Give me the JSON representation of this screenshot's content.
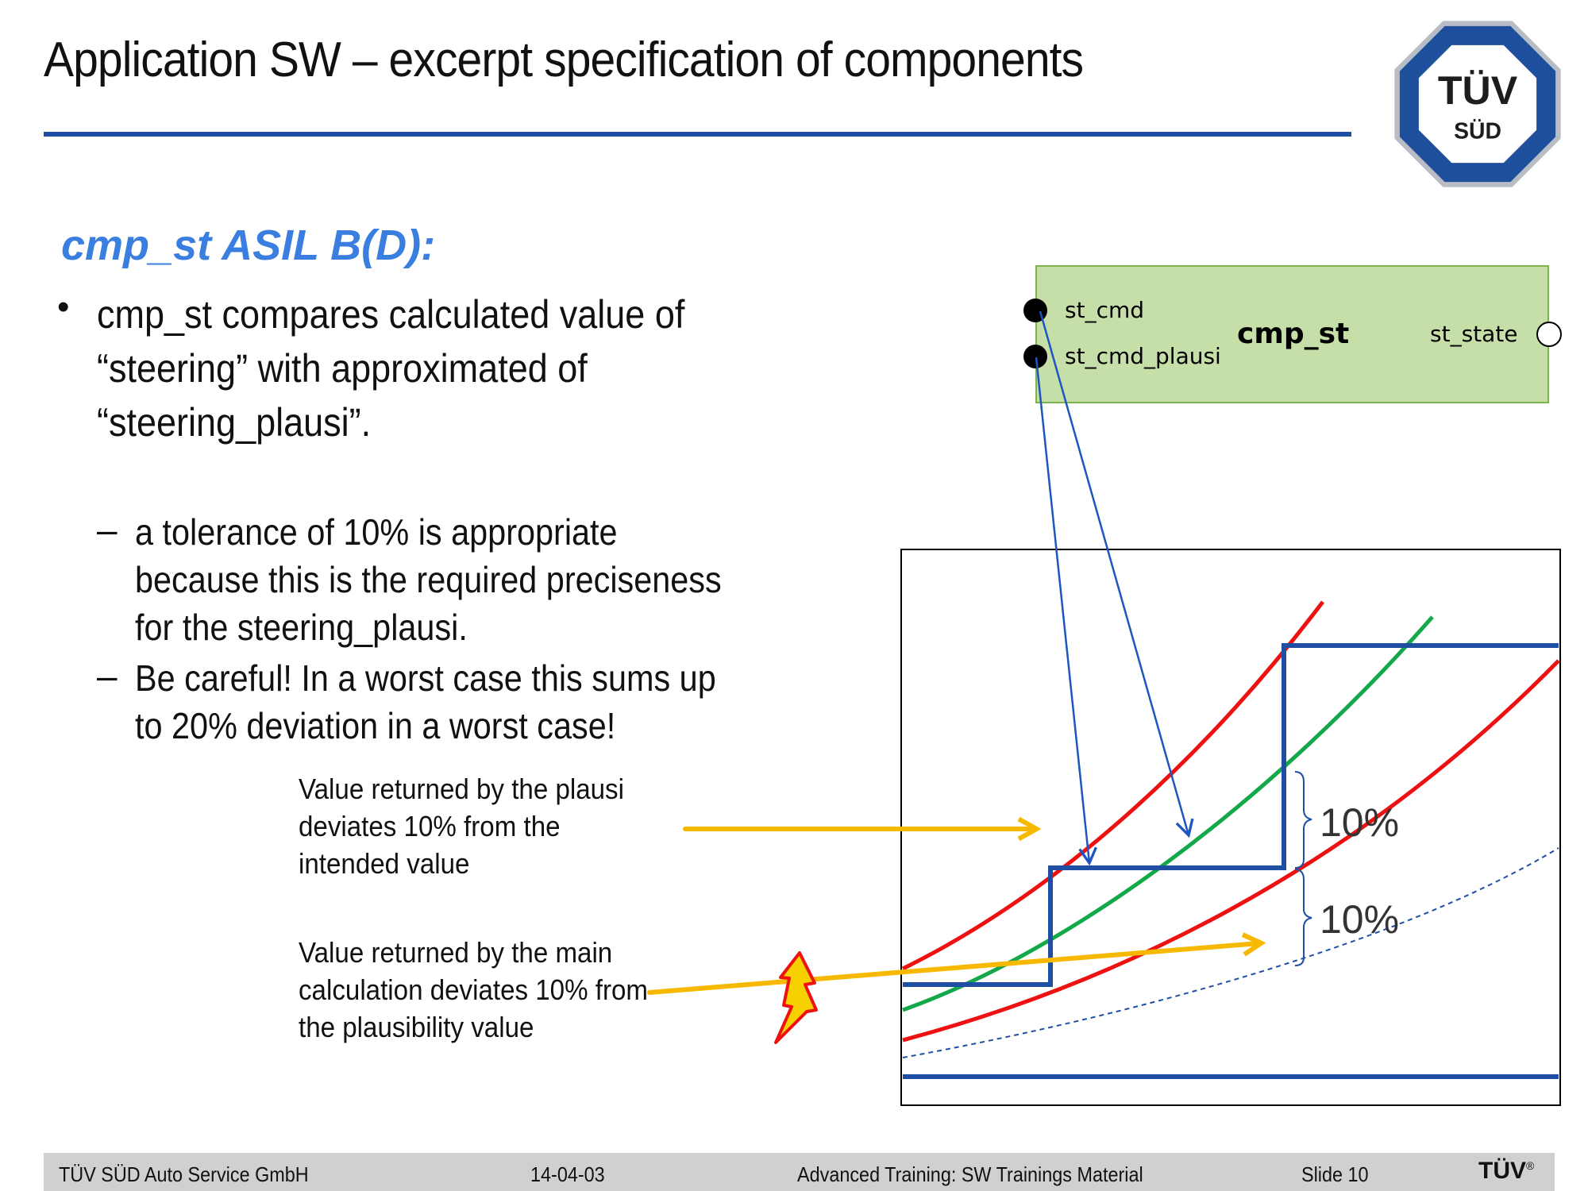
{
  "header": {
    "title": "Application SW – excerpt specification of components",
    "logo_text_top": "TÜV",
    "logo_text_bottom": "SÜD"
  },
  "content": {
    "heading": "cmp_st  ASIL B(D):",
    "bullet_symbol": "•",
    "dash_symbol": "–",
    "bullet_text": "cmp_st compares calculated value of “steering” with approximated of “steering_plausi”.",
    "sub_bullets": [
      "a tolerance of 10% is appropriate because this is the required preciseness for the steering_plausi.",
      "Be careful! In a worst case this sums up to 20% deviation in a worst case!"
    ],
    "callout_plausi": "Value returned by the plausi deviates 10% from the intended value",
    "callout_main": "Value returned by the main calculation deviates 10% from the plausibility value"
  },
  "component": {
    "name": "cmp_st",
    "input_1": "st_cmd",
    "input_2": "st_cmd_plausi",
    "output": "st_state",
    "fill_color": "#c6dfa8",
    "border_color": "#7fb34d"
  },
  "graph": {
    "tolerance_label_1": "10%",
    "tolerance_label_2": "10%",
    "colors": {
      "bounds": "#ee1111",
      "nominal": "#13a84a",
      "steps": "#1f4fa3",
      "arrows": "#f7b800",
      "links": "#1f55c0"
    }
  },
  "footer": {
    "company": "TÜV SÜD Auto Service GmbH",
    "date": "14-04-03",
    "course": "Advanced Training: SW Trainings Material",
    "slide": "Slide 10",
    "logo": "TÜV",
    "logo_mark": "®"
  }
}
